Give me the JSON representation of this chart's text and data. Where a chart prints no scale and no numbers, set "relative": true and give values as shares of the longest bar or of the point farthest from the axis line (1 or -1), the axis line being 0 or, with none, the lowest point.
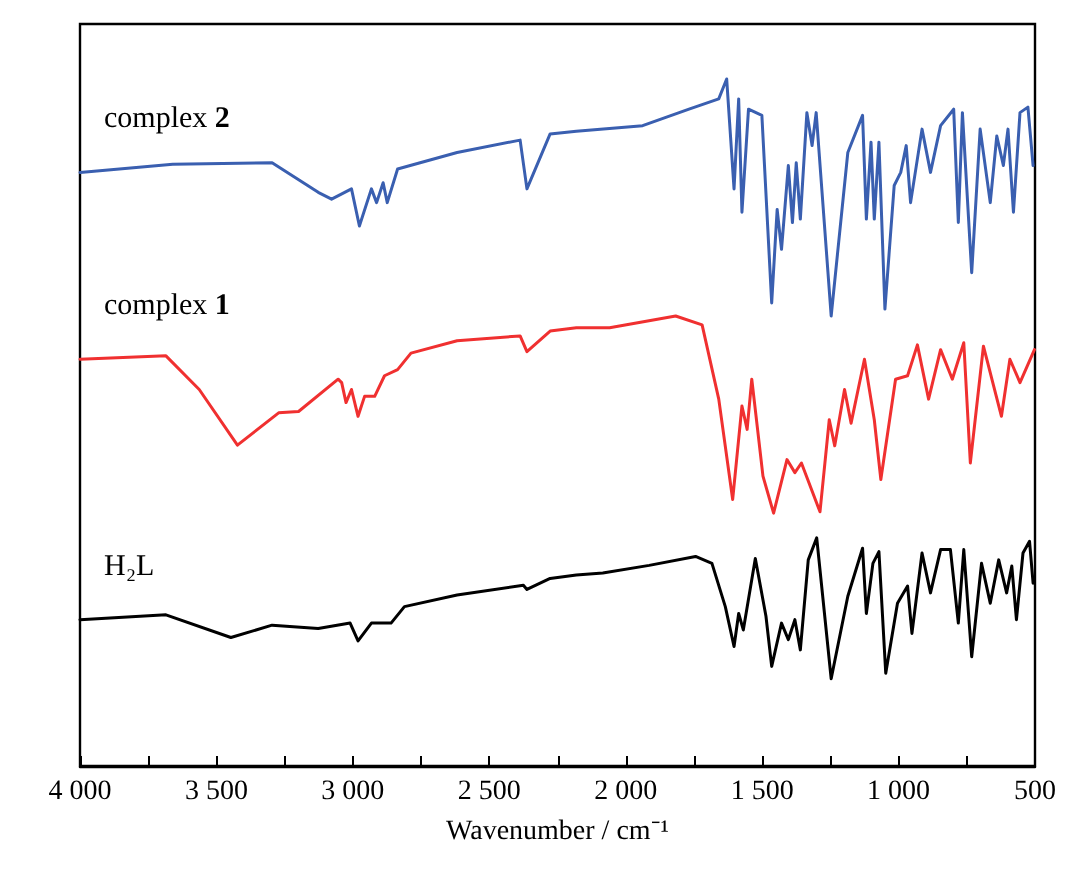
{
  "chart_data": {
    "type": "line",
    "relative": true,
    "xlabel": "Wavenumber / cm⁻¹",
    "xlim": [
      4000,
      500
    ],
    "xticks": [
      {
        "value": 4000,
        "label": "4 000"
      },
      {
        "value": 3750,
        "label": null
      },
      {
        "value": 3500,
        "label": "3 500"
      },
      {
        "value": 3250,
        "label": null
      },
      {
        "value": 3000,
        "label": "3 000"
      },
      {
        "value": 2750,
        "label": null
      },
      {
        "value": 2500,
        "label": "2 500"
      },
      {
        "value": 2250,
        "label": null
      },
      {
        "value": 2000,
        "label": "2 000"
      },
      {
        "value": 1750,
        "label": null
      },
      {
        "value": 1500,
        "label": "1 500"
      },
      {
        "value": 1250,
        "label": null
      },
      {
        "value": 1000,
        "label": "1 000"
      },
      {
        "value": 750,
        "label": null
      },
      {
        "value": 500,
        "label": "500"
      }
    ],
    "tick_labels": "x",
    "grid": false,
    "legend": false,
    "marker": "none",
    "line_style": "solid",
    "series": [
      {
        "name": "complex 2",
        "color": "#3a5fb0",
        "x": [
          4000,
          3660,
          3296,
          3127,
          3078,
          3005,
          2976,
          2932,
          2913,
          2889,
          2874,
          2836,
          2618,
          2387,
          2362,
          2277,
          2181,
          1938,
          1768,
          1659,
          1630,
          1603,
          1586,
          1574,
          1550,
          1501,
          1465,
          1445,
          1429,
          1404,
          1389,
          1375,
          1360,
          1336,
          1317,
          1302,
          1247,
          1186,
          1132,
          1118,
          1101,
          1089,
          1072,
          1050,
          1016,
          992,
          972,
          956,
          914,
          883,
          846,
          798,
          781,
          766,
          732,
          701,
          664,
          640,
          616,
          599,
          579,
          555,
          526,
          507
        ],
        "values": [
          0.864,
          0.876,
          0.878,
          0.835,
          0.825,
          0.84,
          0.786,
          0.84,
          0.82,
          0.849,
          0.82,
          0.869,
          0.893,
          0.911,
          0.84,
          0.92,
          0.924,
          0.932,
          0.956,
          0.971,
          1.0,
          0.84,
          0.971,
          0.806,
          0.956,
          0.947,
          0.674,
          0.81,
          0.752,
          0.874,
          0.791,
          0.878,
          0.796,
          0.951,
          0.903,
          0.951,
          0.655,
          0.893,
          0.947,
          0.796,
          0.908,
          0.796,
          0.908,
          0.665,
          0.845,
          0.864,
          0.903,
          0.82,
          0.927,
          0.864,
          0.932,
          0.956,
          0.791,
          0.951,
          0.718,
          0.927,
          0.82,
          0.917,
          0.874,
          0.927,
          0.806,
          0.951,
          0.959,
          0.874
        ]
      },
      {
        "name": "complex 1",
        "color": "#f03030",
        "x": [
          4000,
          3685,
          3563,
          3423,
          3272,
          3199,
          3054,
          3041,
          3025,
          3005,
          2981,
          2957,
          2920,
          2884,
          2836,
          2787,
          2618,
          2387,
          2362,
          2277,
          2181,
          2059,
          1889,
          1817,
          1720,
          1659,
          1608,
          1574,
          1555,
          1538,
          1497,
          1458,
          1409,
          1380,
          1356,
          1288,
          1254,
          1234,
          1198,
          1174,
          1125,
          1089,
          1065,
          1011,
          967,
          931,
          890,
          846,
          803,
          761,
          737,
          689,
          623,
          592,
          555,
          502
        ],
        "values": [
          0.592,
          0.597,
          0.548,
          0.467,
          0.514,
          0.516,
          0.563,
          0.558,
          0.529,
          0.548,
          0.509,
          0.538,
          0.538,
          0.568,
          0.577,
          0.601,
          0.619,
          0.626,
          0.603,
          0.633,
          0.638,
          0.638,
          0.65,
          0.655,
          0.642,
          0.534,
          0.388,
          0.524,
          0.49,
          0.563,
          0.422,
          0.368,
          0.446,
          0.427,
          0.441,
          0.37,
          0.504,
          0.466,
          0.548,
          0.499,
          0.592,
          0.504,
          0.417,
          0.563,
          0.568,
          0.613,
          0.534,
          0.606,
          0.563,
          0.616,
          0.441,
          0.611,
          0.509,
          0.592,
          0.558,
          0.606
        ]
      },
      {
        "name": "H₂L",
        "color": "#000000",
        "x": [
          4000,
          3685,
          3447,
          3296,
          3127,
          3010,
          2981,
          2932,
          2860,
          2811,
          2618,
          2375,
          2362,
          2277,
          2181,
          2084,
          1914,
          1744,
          1684,
          1635,
          1603,
          1586,
          1569,
          1525,
          1486,
          1465,
          1429,
          1404,
          1380,
          1360,
          1331,
          1300,
          1247,
          1186,
          1132,
          1118,
          1094,
          1072,
          1047,
          1004,
          967,
          951,
          914,
          883,
          846,
          810,
          781,
          761,
          732,
          696,
          664,
          633,
          604,
          585,
          568,
          544,
          520,
          507
        ],
        "values": [
          0.213,
          0.22,
          0.187,
          0.205,
          0.2,
          0.208,
          0.182,
          0.208,
          0.208,
          0.232,
          0.249,
          0.263,
          0.257,
          0.273,
          0.278,
          0.281,
          0.292,
          0.305,
          0.295,
          0.232,
          0.174,
          0.222,
          0.198,
          0.302,
          0.218,
          0.145,
          0.208,
          0.184,
          0.213,
          0.169,
          0.3,
          0.332,
          0.127,
          0.247,
          0.317,
          0.222,
          0.295,
          0.312,
          0.135,
          0.237,
          0.262,
          0.193,
          0.31,
          0.252,
          0.315,
          0.315,
          0.208,
          0.315,
          0.159,
          0.295,
          0.237,
          0.3,
          0.252,
          0.291,
          0.213,
          0.31,
          0.327,
          0.266
        ]
      }
    ]
  }
}
